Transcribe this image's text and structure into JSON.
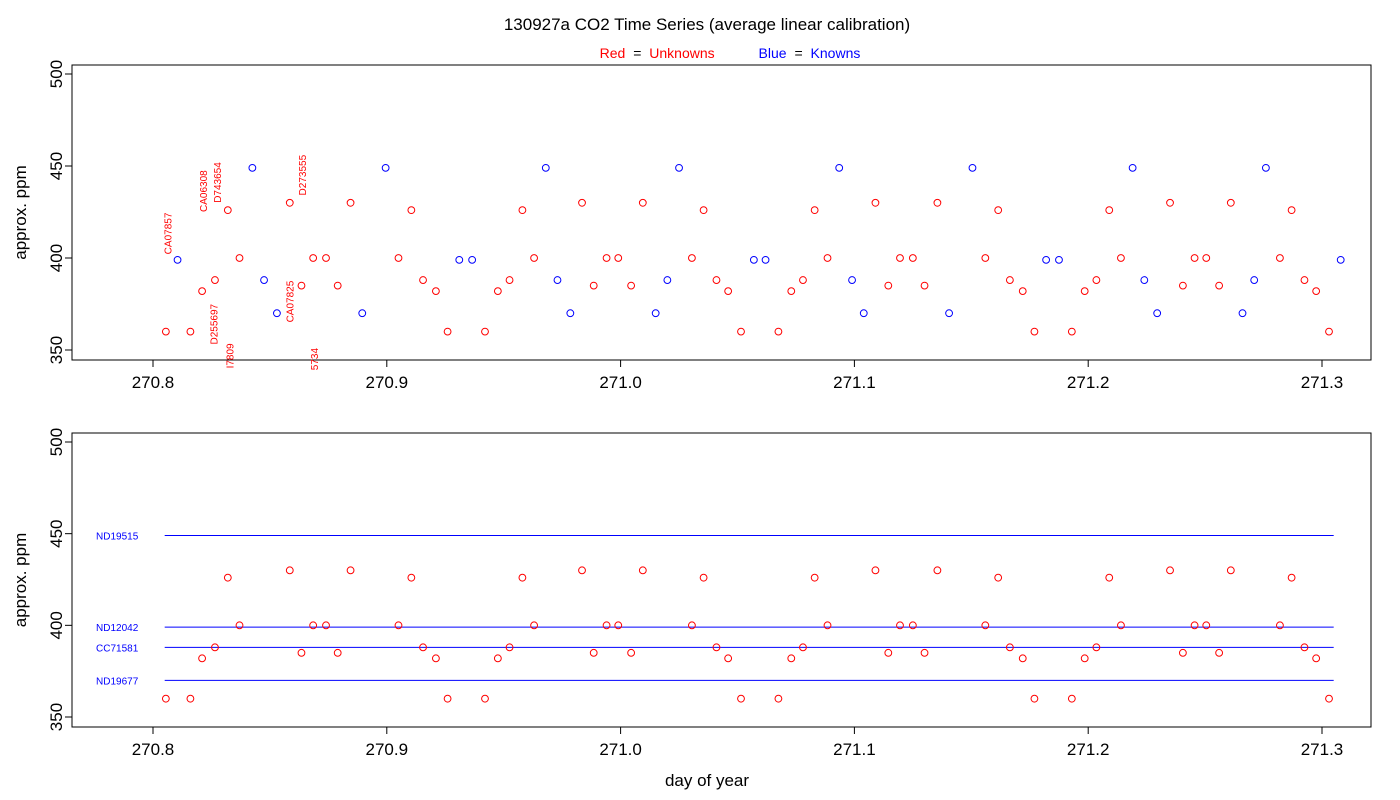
{
  "title": "130927a   CO2 Time Series (average linear calibration)",
  "legend": {
    "unknowns_word": "Red",
    "unknowns_label": "Unknowns",
    "knowns_word": "Blue",
    "knowns_label": "Knowns",
    "equals": "=",
    "unknown_color": "#ff0000",
    "known_color": "#0000ff"
  },
  "chart_data": [
    {
      "type": "line",
      "panel": "top",
      "ylabel": "approx. ppm",
      "xlim": [
        270.8,
        271.3
      ],
      "ylim": [
        350,
        500
      ],
      "x_ticks": [
        "270.8",
        "270.9",
        "271.0",
        "271.1",
        "271.2",
        "271.3"
      ],
      "y_ticks": [
        "350",
        "400",
        "450",
        "500"
      ],
      "trace_color": "#000000",
      "series": [
        {
          "name": "Unknowns",
          "color": "#ff0000",
          "x": [
            270.8055,
            270.816,
            270.821,
            270.8265,
            270.832,
            270.837,
            270.8585,
            270.8635,
            270.8685,
            270.874,
            270.879,
            270.8845,
            270.905,
            270.9105,
            270.9155,
            270.921,
            270.926,
            270.942,
            270.9475,
            270.9525,
            270.958,
            270.963,
            270.9835,
            270.9885,
            270.994,
            270.999,
            271.0045,
            271.0095,
            271.0305,
            271.0355,
            271.041,
            271.046,
            271.0515,
            271.0675,
            271.073,
            271.078,
            271.083,
            271.0885,
            271.109,
            271.1145,
            271.1195,
            271.125,
            271.13,
            271.1355,
            271.156,
            271.1615,
            271.1665,
            271.172,
            271.177,
            271.193,
            271.1985,
            271.2035,
            271.209,
            271.214,
            271.235,
            271.2405,
            271.2455,
            271.2505,
            271.256,
            271.261,
            271.282,
            271.287,
            271.2925,
            271.2975,
            271.303
          ],
          "y": [
            360,
            360,
            382,
            388,
            426,
            400,
            430,
            385,
            400,
            400,
            385,
            430,
            400,
            426,
            388,
            382,
            360,
            360,
            382,
            388,
            426,
            400,
            430,
            385,
            400,
            400,
            385,
            430,
            400,
            426,
            388,
            382,
            360,
            360,
            382,
            388,
            426,
            400,
            430,
            385,
            400,
            400,
            385,
            430,
            400,
            426,
            388,
            382,
            360,
            360,
            382,
            388,
            426,
            400,
            430,
            385,
            400,
            400,
            385,
            430,
            400,
            426,
            388,
            382,
            360
          ]
        },
        {
          "name": "Knowns",
          "color": "#0000ff",
          "x": [
            270.8105,
            270.8425,
            270.8475,
            270.853,
            270.8895,
            270.8995,
            270.931,
            270.9365,
            270.968,
            270.973,
            270.9785,
            271.015,
            271.02,
            271.025,
            271.057,
            271.062,
            271.0935,
            271.099,
            271.104,
            271.1405,
            271.1505,
            271.182,
            271.1875,
            271.219,
            271.224,
            271.2295,
            271.266,
            271.271,
            271.276,
            271.308
          ],
          "y": [
            399,
            449,
            388,
            370,
            370,
            449,
            399,
            399,
            449,
            388,
            370,
            370,
            388,
            449,
            399,
            399,
            449,
            388,
            370,
            370,
            449,
            399,
            399,
            449,
            388,
            370,
            370,
            388,
            449,
            399
          ]
        }
      ],
      "annotations": [
        {
          "text": "CA07857",
          "x": 270.808,
          "y": 402
        },
        {
          "text": "CA06308",
          "x": 270.823,
          "y": 425
        },
        {
          "text": "D743654",
          "x": 270.829,
          "y": 430
        },
        {
          "text": "D255697",
          "x": 270.8275,
          "y": 353
        },
        {
          "text": "I7809",
          "x": 270.8345,
          "y": 340
        },
        {
          "text": "CA07825",
          "x": 270.86,
          "y": 365
        },
        {
          "text": "D273555",
          "x": 270.8655,
          "y": 434
        },
        {
          "text": "5734",
          "x": 270.8705,
          "y": 339
        }
      ]
    },
    {
      "type": "scatter",
      "panel": "bottom",
      "xlabel": "day of year",
      "ylabel": "approx. ppm",
      "xlim": [
        270.8,
        271.3
      ],
      "ylim": [
        350,
        500
      ],
      "x_ticks": [
        "270.8",
        "270.9",
        "271.0",
        "271.1",
        "271.2",
        "271.3"
      ],
      "y_ticks": [
        "350",
        "400",
        "450",
        "500"
      ],
      "reference_lines": [
        {
          "name": "ND19515",
          "y": 449,
          "color": "#0000ff",
          "x": [
            270.805,
            271.305
          ]
        },
        {
          "name": "ND12042",
          "y": 399,
          "color": "#0000ff",
          "x": [
            270.805,
            271.305
          ]
        },
        {
          "name": "CC71581",
          "y": 388,
          "color": "#0000ff",
          "x": [
            270.805,
            271.305
          ]
        },
        {
          "name": "ND19677",
          "y": 370,
          "color": "#0000ff",
          "x": [
            270.805,
            271.305
          ]
        }
      ],
      "series": [
        {
          "name": "Unknowns",
          "color": "#ff0000",
          "x": [
            270.8055,
            270.816,
            270.821,
            270.8265,
            270.832,
            270.837,
            270.8585,
            270.8635,
            270.8685,
            270.874,
            270.879,
            270.8845,
            270.905,
            270.9105,
            270.9155,
            270.921,
            270.926,
            270.942,
            270.9475,
            270.9525,
            270.958,
            270.963,
            270.9835,
            270.9885,
            270.994,
            270.999,
            271.0045,
            271.0095,
            271.0305,
            271.0355,
            271.041,
            271.046,
            271.0515,
            271.0675,
            271.073,
            271.078,
            271.083,
            271.0885,
            271.109,
            271.1145,
            271.1195,
            271.125,
            271.13,
            271.1355,
            271.156,
            271.1615,
            271.1665,
            271.172,
            271.177,
            271.193,
            271.1985,
            271.2035,
            271.209,
            271.214,
            271.235,
            271.2405,
            271.2455,
            271.2505,
            271.256,
            271.261,
            271.282,
            271.287,
            271.2925,
            271.2975,
            271.303
          ],
          "y": [
            360,
            360,
            382,
            388,
            426,
            400,
            430,
            385,
            400,
            400,
            385,
            430,
            400,
            426,
            388,
            382,
            360,
            360,
            382,
            388,
            426,
            400,
            430,
            385,
            400,
            400,
            385,
            430,
            400,
            426,
            388,
            382,
            360,
            360,
            382,
            388,
            426,
            400,
            430,
            385,
            400,
            400,
            385,
            430,
            400,
            426,
            388,
            382,
            360,
            360,
            382,
            388,
            426,
            400,
            430,
            385,
            400,
            400,
            385,
            430,
            400,
            426,
            388,
            382,
            360
          ]
        }
      ]
    }
  ]
}
